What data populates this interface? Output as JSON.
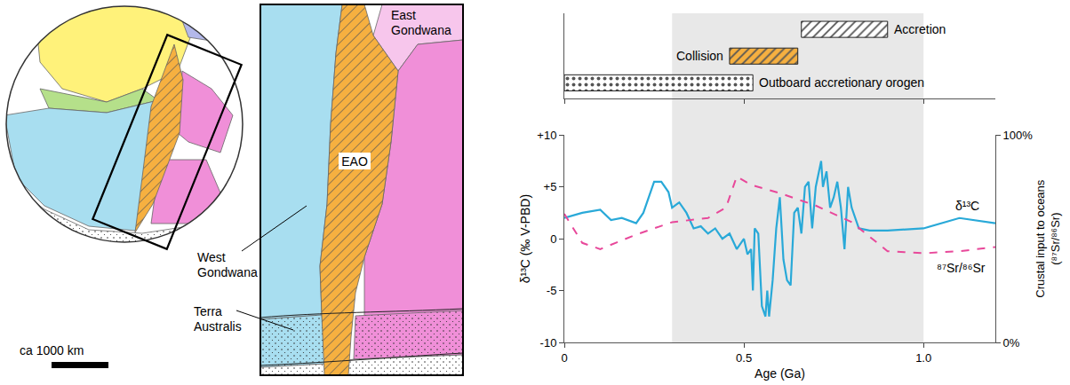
{
  "map": {
    "labels": {
      "east_gondwana": "East Gondwana",
      "eao": "EAO",
      "west_gondwana": "West Gondwana",
      "terra_australis": "Terra Australis"
    },
    "scale_bar": "ca 1000 km"
  },
  "chart_data": {
    "type": "line",
    "x_label": "Age (Ga)",
    "y_label": "δ¹³C (‰ V-PBD)",
    "y2_label": "Crustal input to oceans (⁸⁷Sr/⁸⁶Sr)",
    "xlim": [
      0,
      1.2
    ],
    "xticks": [
      0,
      0.5,
      {
        "value": 1,
        "label": "1.0"
      }
    ],
    "ylim": [
      -10,
      10
    ],
    "yticks": [
      -10,
      -5,
      0,
      {
        "value": 5,
        "label": "+5"
      },
      {
        "value": 10,
        "label": "+10"
      }
    ],
    "y2lim": [
      0,
      100
    ],
    "y2ticks": [
      {
        "value": 0,
        "label": "0%"
      },
      {
        "value": 100,
        "label": "100%"
      }
    ],
    "grid": false,
    "highlight": {
      "x": [
        0.3,
        1.0
      ]
    },
    "series": [
      {
        "name": "δ¹³C",
        "color": "#29a9d8",
        "line_style": "solid",
        "x": [
          0,
          0.05,
          0.1,
          0.13,
          0.16,
          0.2,
          0.22,
          0.25,
          0.27,
          0.29,
          0.3,
          0.32,
          0.34,
          0.36,
          0.38,
          0.4,
          0.42,
          0.44,
          0.46,
          0.48,
          0.5,
          0.51,
          0.52,
          0.525,
          0.53,
          0.54,
          0.55,
          0.56,
          0.565,
          0.57,
          0.58,
          0.59,
          0.6,
          0.61,
          0.62,
          0.63,
          0.64,
          0.65,
          0.66,
          0.67,
          0.68,
          0.69,
          0.7,
          0.715,
          0.72,
          0.73,
          0.74,
          0.75,
          0.76,
          0.77,
          0.78,
          0.79,
          0.8,
          0.82,
          0.85,
          0.9,
          1.0,
          1.1,
          1.2
        ],
        "values": [
          2.0,
          2.5,
          2.8,
          1.8,
          2.0,
          1.5,
          2.5,
          5.5,
          5.5,
          4.5,
          3.0,
          3.5,
          2.5,
          1.0,
          1.2,
          0.5,
          1.0,
          0,
          0.5,
          -1.0,
          0,
          -1.5,
          -1.0,
          -5.0,
          1.0,
          0.5,
          -6.5,
          -7.5,
          -5.0,
          -7.5,
          -4.0,
          1.0,
          4.0,
          -2.0,
          -4.0,
          -4.5,
          2.5,
          3.0,
          0.5,
          5.0,
          5.5,
          1.0,
          5.0,
          7.5,
          5.0,
          6.5,
          3.0,
          4.0,
          5.5,
          3.0,
          -1.0,
          5.0,
          3.0,
          1.0,
          0.8,
          0.8,
          1.0,
          2.0,
          1.5
        ]
      },
      {
        "name": "⁸⁷Sr/⁸⁶Sr",
        "color": "#e8489a",
        "line_style": "dashed",
        "axis": "y2",
        "x": [
          0,
          0.05,
          0.1,
          0.2,
          0.3,
          0.4,
          0.45,
          0.48,
          0.52,
          0.6,
          0.7,
          0.8,
          0.9,
          1.0,
          1.1,
          1.2
        ],
        "values": [
          62,
          48,
          45,
          52,
          58,
          60,
          65,
          80,
          76,
          72,
          66,
          58,
          44,
          43,
          44,
          46
        ]
      }
    ],
    "intervals": [
      {
        "name": "Accretion",
        "start": 0.66,
        "end": 0.9,
        "color": "#ffffff",
        "marker": "hatch"
      },
      {
        "name": "Collision",
        "start": 0.46,
        "end": 0.65,
        "color": "#f6b040",
        "marker": "hatch"
      },
      {
        "name": "Outboard accretionary orogen",
        "start": 0,
        "end": 0.525,
        "color": "#ffffff",
        "marker": "dots"
      }
    ]
  }
}
